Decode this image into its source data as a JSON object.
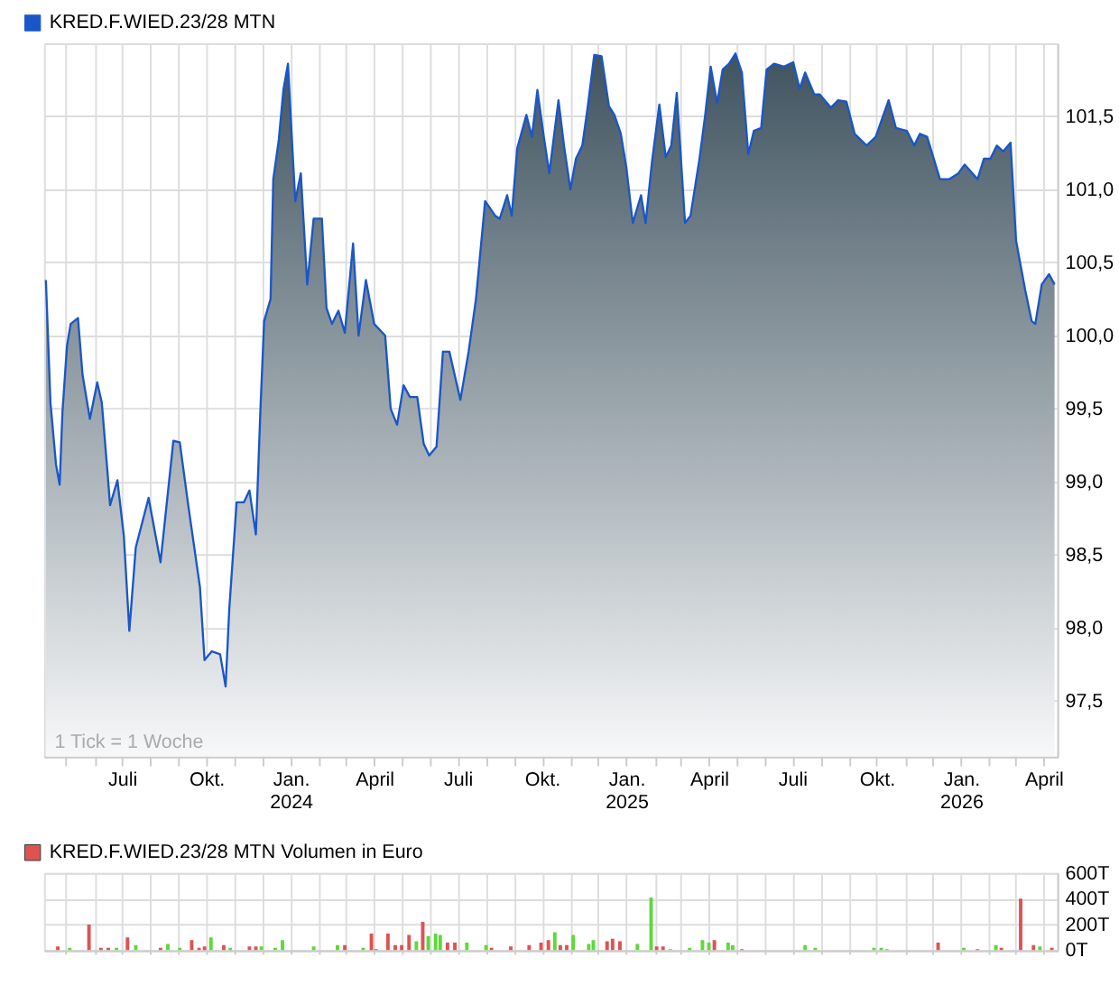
{
  "chart_data": [
    {
      "type": "area",
      "legend": "top left",
      "grid": true,
      "xlim": [
        "2023-04-07",
        "2026-04-16"
      ],
      "ylim": [
        97.12,
        102.0
      ],
      "xticks": [
        {
          "value": "2023-05-01",
          "label": null
        },
        {
          "value": "2023-06-01",
          "label": null
        },
        {
          "value": "2023-07-01",
          "label": "Juli"
        },
        {
          "value": "2023-08-01",
          "label": null
        },
        {
          "value": "2023-09-01",
          "label": null
        },
        {
          "value": "2023-10-01",
          "label": "Okt."
        },
        {
          "value": "2023-11-01",
          "label": null
        },
        {
          "value": "2023-12-01",
          "label": null
        },
        {
          "value": "2024-01-01",
          "label": "Jan. 2024"
        },
        {
          "value": "2024-02-01",
          "label": null
        },
        {
          "value": "2024-03-01",
          "label": null
        },
        {
          "value": "2024-04-01",
          "label": "April"
        },
        {
          "value": "2024-05-01",
          "label": null
        },
        {
          "value": "2024-06-01",
          "label": null
        },
        {
          "value": "2024-07-01",
          "label": "Juli"
        },
        {
          "value": "2024-08-01",
          "label": null
        },
        {
          "value": "2024-09-01",
          "label": null
        },
        {
          "value": "2024-10-01",
          "label": "Okt."
        },
        {
          "value": "2024-11-01",
          "label": null
        },
        {
          "value": "2024-12-01",
          "label": null
        },
        {
          "value": "2025-01-01",
          "label": "Jan. 2025"
        },
        {
          "value": "2025-02-01",
          "label": null
        },
        {
          "value": "2025-03-01",
          "label": null
        },
        {
          "value": "2025-04-01",
          "label": "April"
        },
        {
          "value": "2025-05-01",
          "label": null
        },
        {
          "value": "2025-06-01",
          "label": null
        },
        {
          "value": "2025-07-01",
          "label": "Juli"
        },
        {
          "value": "2025-08-01",
          "label": null
        },
        {
          "value": "2025-09-01",
          "label": null
        },
        {
          "value": "2025-10-01",
          "label": "Okt."
        },
        {
          "value": "2025-11-01",
          "label": null
        },
        {
          "value": "2025-12-01",
          "label": null
        },
        {
          "value": "2026-01-01",
          "label": "Jan. 2026"
        },
        {
          "value": "2026-02-01",
          "label": null
        },
        {
          "value": "2026-03-01",
          "label": null
        },
        {
          "value": "2026-04-01",
          "label": "April"
        }
      ],
      "yticks": [
        {
          "value": 97.5,
          "label": "97,5"
        },
        {
          "value": 98.0,
          "label": "98,0"
        },
        {
          "value": 98.5,
          "label": "98,5"
        },
        {
          "value": 99.0,
          "label": "99,0"
        },
        {
          "value": 99.5,
          "label": "99,5"
        },
        {
          "value": 100.0,
          "label": "100,0"
        },
        {
          "value": 100.5,
          "label": "100,5"
        },
        {
          "value": 101.0,
          "label": "101,0"
        },
        {
          "value": 101.5,
          "label": "101,5"
        }
      ],
      "annotations": [
        "1 Tick = 1 Woche"
      ],
      "x": [
        "2023-04-09",
        "2023-04-10",
        "2023-04-14",
        "2023-04-20",
        "2023-04-24",
        "2023-04-27",
        "2023-05-02",
        "2023-05-06",
        "2023-05-14",
        "2023-05-19",
        "2023-05-27",
        "2023-06-04",
        "2023-06-09",
        "2023-06-15",
        "2023-06-18",
        "2023-06-26",
        "2023-07-03",
        "2023-07-09",
        "2023-07-16",
        "2023-07-30",
        "2023-08-12",
        "2023-08-26",
        "2023-09-02",
        "2023-09-11",
        "2023-09-24",
        "2023-09-29",
        "2023-10-07",
        "2023-10-16",
        "2023-10-22",
        "2023-10-26",
        "2023-11-03",
        "2023-11-11",
        "2023-11-17",
        "2023-11-24",
        "2023-11-29",
        "2023-12-03",
        "2023-12-10",
        "2023-12-13",
        "2023-12-19",
        "2023-12-24",
        "2023-12-29",
        "2024-01-03",
        "2024-01-06",
        "2024-01-12",
        "2024-01-19",
        "2024-01-26",
        "2024-02-04",
        "2024-02-09",
        "2024-02-15",
        "2024-02-22",
        "2024-02-29",
        "2024-03-09",
        "2024-03-15",
        "2024-03-23",
        "2024-04-01",
        "2024-04-13",
        "2024-04-19",
        "2024-04-26",
        "2024-05-03",
        "2024-05-10",
        "2024-05-18",
        "2024-05-25",
        "2024-05-31",
        "2024-06-08",
        "2024-06-15",
        "2024-06-22",
        "2024-07-04",
        "2024-07-13",
        "2024-07-21",
        "2024-07-31",
        "2024-08-11",
        "2024-08-16",
        "2024-08-24",
        "2024-08-29",
        "2024-09-04",
        "2024-09-14",
        "2024-09-20",
        "2024-09-26",
        "2024-10-03",
        "2024-10-09",
        "2024-10-19",
        "2024-10-25",
        "2024-11-01",
        "2024-11-07",
        "2024-11-14",
        "2024-11-20",
        "2024-11-27",
        "2024-12-05",
        "2024-12-13",
        "2024-12-19",
        "2024-12-26",
        "2025-01-01",
        "2025-01-08",
        "2025-01-17",
        "2025-01-22",
        "2025-01-29",
        "2025-02-06",
        "2025-02-13",
        "2025-02-19",
        "2025-02-25",
        "2025-03-06",
        "2025-03-12",
        "2025-03-22",
        "2025-03-28",
        "2025-04-03",
        "2025-04-10",
        "2025-04-16",
        "2025-04-23",
        "2025-04-30",
        "2025-05-07",
        "2025-05-14",
        "2025-05-20",
        "2025-05-28",
        "2025-06-03",
        "2025-06-11",
        "2025-06-22",
        "2025-07-02",
        "2025-07-09",
        "2025-07-15",
        "2025-07-25",
        "2025-07-31",
        "2025-08-12",
        "2025-08-20",
        "2025-08-29",
        "2025-09-07",
        "2025-09-20",
        "2025-09-30",
        "2025-10-14",
        "2025-10-22",
        "2025-11-03",
        "2025-11-11",
        "2025-11-17",
        "2025-11-25",
        "2025-12-09",
        "2025-12-19",
        "2025-12-29",
        "2026-01-05",
        "2026-01-19",
        "2026-01-26",
        "2026-02-02",
        "2026-02-09",
        "2026-02-16",
        "2026-02-24",
        "2026-03-02",
        "2026-03-12",
        "2026-03-19",
        "2026-03-23",
        "2026-03-30",
        "2026-04-07",
        "2026-04-13"
      ],
      "series": [
        {
          "name": "KRED.F.WIED.23/28 MTN",
          "color": "#1a56c8",
          "values": [
            100.38,
            100.21,
            99.54,
            99.12,
            98.98,
            99.47,
            99.93,
            100.08,
            100.12,
            99.73,
            99.43,
            99.68,
            99.54,
            99.08,
            98.84,
            99.01,
            98.63,
            97.98,
            98.55,
            98.89,
            98.45,
            99.28,
            99.27,
            98.85,
            98.28,
            97.78,
            97.84,
            97.82,
            97.6,
            98.13,
            98.86,
            98.86,
            98.94,
            98.64,
            99.5,
            100.1,
            100.25,
            101.07,
            101.34,
            101.68,
            101.86,
            101.26,
            100.92,
            101.11,
            100.35,
            100.8,
            100.8,
            100.19,
            100.08,
            100.17,
            100.02,
            100.63,
            100.0,
            100.38,
            100.08,
            100.0,
            99.5,
            99.39,
            99.66,
            99.58,
            99.58,
            99.26,
            99.18,
            99.24,
            99.89,
            99.89,
            99.56,
            99.89,
            100.25,
            100.92,
            100.82,
            100.8,
            100.96,
            100.82,
            101.28,
            101.51,
            101.36,
            101.68,
            101.36,
            101.11,
            101.61,
            101.3,
            101.0,
            101.21,
            101.3,
            101.57,
            101.92,
            101.91,
            101.57,
            101.51,
            101.38,
            101.15,
            100.77,
            100.96,
            100.77,
            101.19,
            101.58,
            101.22,
            101.3,
            101.66,
            100.77,
            100.82,
            101.22,
            101.51,
            101.84,
            101.59,
            101.82,
            101.86,
            101.93,
            101.8,
            101.24,
            101.4,
            101.42,
            101.82,
            101.86,
            101.84,
            101.87,
            101.69,
            101.8,
            101.65,
            101.65,
            101.56,
            101.61,
            101.6,
            101.38,
            101.3,
            101.36,
            101.61,
            101.42,
            101.4,
            101.3,
            101.38,
            101.36,
            101.07,
            101.07,
            101.11,
            101.17,
            101.07,
            101.21,
            101.21,
            101.3,
            101.26,
            101.32,
            100.65,
            100.31,
            100.1,
            100.08,
            100.35,
            100.42,
            100.35
          ]
        }
      ]
    },
    {
      "type": "bar",
      "legend": "top left",
      "grid": true,
      "tick_labels": "y",
      "xlim": [
        "2023-04-07",
        "2026-04-16"
      ],
      "ylim": [
        0,
        600
      ],
      "xticks": [
        {
          "value": "2023-05-01",
          "label": null
        },
        {
          "value": "2023-06-01",
          "label": null
        },
        {
          "value": "2023-07-01",
          "label": null
        },
        {
          "value": "2023-08-01",
          "label": null
        },
        {
          "value": "2023-09-01",
          "label": null
        },
        {
          "value": "2023-10-01",
          "label": null
        },
        {
          "value": "2023-11-01",
          "label": null
        },
        {
          "value": "2023-12-01",
          "label": null
        },
        {
          "value": "2024-01-01",
          "label": null
        },
        {
          "value": "2024-02-01",
          "label": null
        },
        {
          "value": "2024-03-01",
          "label": null
        },
        {
          "value": "2024-04-01",
          "label": null
        },
        {
          "value": "2024-05-01",
          "label": null
        },
        {
          "value": "2024-06-01",
          "label": null
        },
        {
          "value": "2024-07-01",
          "label": null
        },
        {
          "value": "2024-08-01",
          "label": null
        },
        {
          "value": "2024-09-01",
          "label": null
        },
        {
          "value": "2024-10-01",
          "label": null
        },
        {
          "value": "2024-11-01",
          "label": null
        },
        {
          "value": "2024-12-01",
          "label": null
        },
        {
          "value": "2025-01-01",
          "label": null
        },
        {
          "value": "2025-02-01",
          "label": null
        },
        {
          "value": "2025-03-01",
          "label": null
        },
        {
          "value": "2025-04-01",
          "label": null
        },
        {
          "value": "2025-05-01",
          "label": null
        },
        {
          "value": "2025-06-01",
          "label": null
        },
        {
          "value": "2025-07-01",
          "label": null
        },
        {
          "value": "2025-08-01",
          "label": null
        },
        {
          "value": "2025-09-01",
          "label": null
        },
        {
          "value": "2025-10-01",
          "label": null
        },
        {
          "value": "2025-11-01",
          "label": null
        },
        {
          "value": "2025-12-01",
          "label": null
        },
        {
          "value": "2026-01-01",
          "label": null
        },
        {
          "value": "2026-02-01",
          "label": null
        },
        {
          "value": "2026-03-01",
          "label": null
        },
        {
          "value": "2026-04-01",
          "label": null
        }
      ],
      "yticks": [
        {
          "value": 0,
          "label": "0T"
        },
        {
          "value": 200,
          "label": "200T"
        },
        {
          "value": 400,
          "label": "400T"
        },
        {
          "value": 600,
          "label": "600T"
        }
      ],
      "series": [
        {
          "name": "KRED.F.WIED.23/28 MTN Volumen in Euro",
          "color": "#e05252",
          "x": [
            "2023-04-22",
            "2023-05-26",
            "2023-06-08",
            "2023-06-16",
            "2023-07-07",
            "2023-08-12",
            "2023-09-15",
            "2023-09-23",
            "2023-09-29",
            "2023-10-20",
            "2023-11-17",
            "2023-11-24",
            "2024-02-29",
            "2024-03-29",
            "2024-04-03",
            "2024-04-16",
            "2024-04-24",
            "2024-05-01",
            "2024-05-09",
            "2024-05-24",
            "2024-06-20",
            "2024-06-28",
            "2024-08-07",
            "2024-08-28",
            "2024-09-17",
            "2024-09-30",
            "2024-10-08",
            "2024-10-21",
            "2024-10-28",
            "2024-12-11",
            "2024-12-17",
            "2024-12-25",
            "2025-02-03",
            "2025-02-10",
            "2025-04-07",
            "2025-05-07",
            "2025-12-07",
            "2026-01-19",
            "2026-02-14",
            "2026-03-07",
            "2026-03-21",
            "2026-04-10"
          ],
          "values": [
            30,
            200,
            20,
            20,
            100,
            20,
            80,
            20,
            30,
            40,
            30,
            30,
            40,
            130,
            10,
            130,
            40,
            40,
            120,
            220,
            60,
            60,
            20,
            30,
            40,
            60,
            80,
            40,
            40,
            70,
            90,
            70,
            30,
            30,
            80,
            10,
            60,
            10,
            20,
            400,
            40,
            20
          ]
        },
        {
          "color": "#5ed93a",
          "x": [
            "2023-05-05",
            "2023-06-25",
            "2023-07-16",
            "2023-08-20",
            "2023-09-02",
            "2023-10-06",
            "2023-10-27",
            "2023-11-30",
            "2023-12-15",
            "2023-12-23",
            "2024-01-26",
            "2024-02-21",
            "2024-03-20",
            "2024-05-17",
            "2024-05-30",
            "2024-06-07",
            "2024-06-12",
            "2024-07-11",
            "2024-08-01",
            "2024-10-15",
            "2024-11-04",
            "2024-11-21",
            "2024-11-26",
            "2025-01-13",
            "2025-01-28",
            "2025-02-18",
            "2025-03-11",
            "2025-03-25",
            "2025-04-01",
            "2025-04-22",
            "2025-04-27",
            "2025-07-15",
            "2025-07-26",
            "2025-09-28",
            "2025-10-06",
            "2025-10-12",
            "2026-01-04",
            "2026-02-08",
            "2026-03-28"
          ],
          "values": [
            20,
            20,
            40,
            50,
            20,
            100,
            20,
            30,
            20,
            80,
            30,
            40,
            20,
            70,
            110,
            130,
            120,
            60,
            40,
            140,
            120,
            50,
            80,
            50,
            410,
            10,
            20,
            80,
            60,
            60,
            40,
            40,
            20,
            20,
            20,
            10,
            20,
            40,
            30
          ]
        }
      ]
    }
  ]
}
